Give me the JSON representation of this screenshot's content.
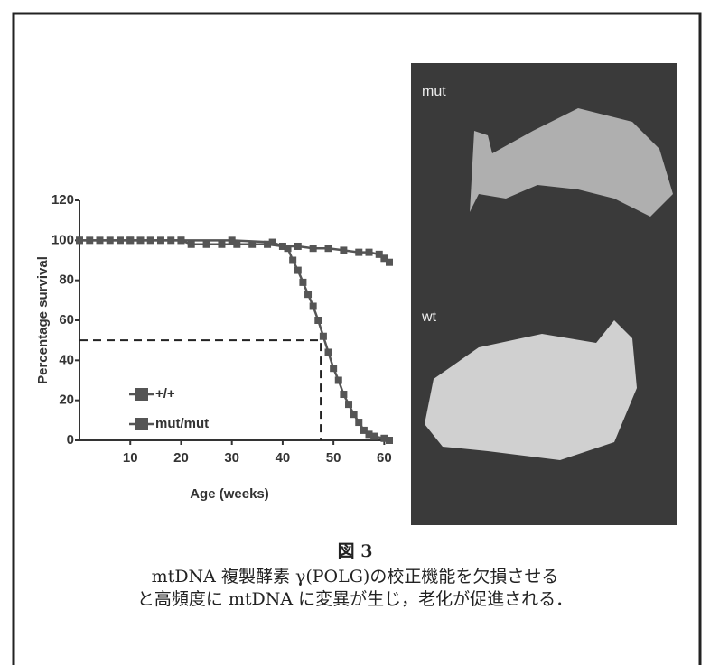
{
  "chart_data": {
    "type": "line",
    "x_label": "Age (weeks)",
    "y_label": "Percentage survival",
    "xlim": [
      0,
      61
    ],
    "xticks": [
      10,
      20,
      30,
      40,
      50,
      60
    ],
    "ylim": [
      0,
      120
    ],
    "yticks": [
      0,
      20,
      40,
      60,
      80,
      100,
      120
    ],
    "grid": false,
    "legend": "lower left",
    "median_line": {
      "x": 47.5,
      "y": 50
    },
    "series": [
      {
        "name": "+/+",
        "color": "#555555",
        "x": [
          0,
          2,
          4,
          6,
          8,
          10,
          12,
          14,
          16,
          18,
          20,
          22,
          25,
          28,
          31,
          34,
          37,
          40,
          43,
          46,
          49,
          52,
          55,
          57,
          59,
          60,
          61
        ],
        "values": [
          100,
          100,
          100,
          100,
          100,
          100,
          100,
          100,
          100,
          100,
          100,
          98,
          98,
          98,
          98,
          98,
          98,
          97,
          97,
          96,
          96,
          95,
          94,
          94,
          93,
          91,
          89
        ]
      },
      {
        "name": "mut/mut",
        "color": "#555555",
        "x": [
          0,
          10,
          20,
          30,
          38,
          41,
          42,
          43,
          44,
          45,
          46,
          47,
          48,
          49,
          50,
          51,
          52,
          53,
          54,
          55,
          56,
          57,
          58,
          60,
          61
        ],
        "values": [
          100,
          100,
          100,
          100,
          99,
          96,
          90,
          85,
          79,
          73,
          67,
          60,
          52,
          44,
          36,
          30,
          23,
          18,
          13,
          9,
          5,
          3,
          2,
          1,
          0
        ]
      }
    ]
  },
  "figure": {
    "label": "図 3",
    "caption": [
      "mtDNA 複製酵素 γ(POLG)の校正機能を欠損させる",
      "と高頻度に mtDNA に変異が生じ，老化が促進される．"
    ],
    "photo_labels": [
      "mut",
      "wt"
    ]
  }
}
